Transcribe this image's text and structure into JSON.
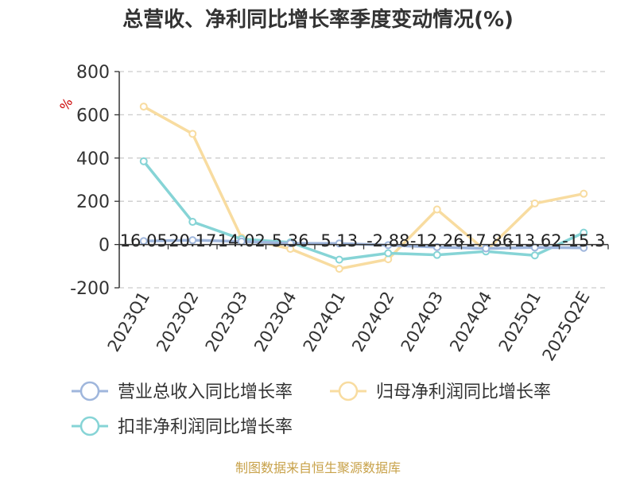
{
  "colors": {
    "revenue": "#9fb6dc",
    "net_profit": "#f8dca0",
    "deducted_profit": "#86d4d6",
    "grid": "#cccccc",
    "axis": "#333333",
    "source": "#c8a24a"
  },
  "source_text": "制图数据来自恒生聚源数据库",
  "chart_data": {
    "type": "line",
    "title": "总营收、净利同比增长率季度变动情况(%)",
    "ylabel": "%",
    "xlabel": "",
    "ylim": [
      -200,
      800
    ],
    "yticks": [
      800,
      600,
      400,
      200,
      0,
      -200
    ],
    "grid": true,
    "legend_position": "bottom",
    "categories": [
      "2023Q1",
      "2023Q2",
      "2023Q3",
      "2023Q4",
      "2024Q1",
      "2024Q2",
      "2024Q3",
      "2024Q4",
      "2025Q1",
      "2025Q2E"
    ],
    "series": [
      {
        "key": "revenue",
        "name": "营业总收入同比增长率",
        "values": [
          16.05,
          20.17,
          14.02,
          5.36,
          5.13,
          -2.88,
          -12.26,
          -17.86,
          -13.62,
          -15.3
        ],
        "labels": [
          "16.05",
          "20.17",
          "14.02",
          "5.36",
          "5.13",
          "-2.88",
          "-12.26",
          "-17.86",
          "-13.62",
          "-15.3"
        ]
      },
      {
        "key": "net_profit",
        "name": "归母净利润同比增长率",
        "values": [
          638,
          512,
          32,
          -20,
          -112,
          -68,
          162,
          -30,
          190,
          235
        ]
      },
      {
        "key": "deducted_profit",
        "name": "扣非净利润同比增长率",
        "values": [
          385,
          105,
          25,
          10,
          -70,
          -40,
          -48,
          -32,
          -50,
          55
        ]
      }
    ]
  }
}
